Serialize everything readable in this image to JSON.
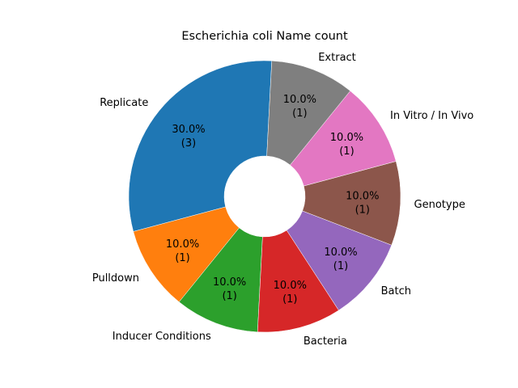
{
  "chart_data": {
    "type": "pie",
    "title": "Escherichia coli Name count",
    "donut": true,
    "start_angle_deg": 87,
    "direction": "counterclockwise",
    "slices": [
      {
        "label": "Replicate",
        "value": 3,
        "pct_text": "30.0%",
        "count_text": "(3)",
        "color": "#1f77b4"
      },
      {
        "label": "Pulldown",
        "value": 1,
        "pct_text": "10.0%",
        "count_text": "(1)",
        "color": "#ff7f0e"
      },
      {
        "label": "Inducer Conditions",
        "value": 1,
        "pct_text": "10.0%",
        "count_text": "(1)",
        "color": "#2ca02c"
      },
      {
        "label": "Bacteria",
        "value": 1,
        "pct_text": "10.0%",
        "count_text": "(1)",
        "color": "#d62728"
      },
      {
        "label": "Batch",
        "value": 1,
        "pct_text": "10.0%",
        "count_text": "(1)",
        "color": "#9467bd"
      },
      {
        "label": "Genotype",
        "value": 1,
        "pct_text": "10.0%",
        "count_text": "(1)",
        "color": "#8c564b"
      },
      {
        "label": "In Vitro / In Vivo",
        "value": 1,
        "pct_text": "10.0%",
        "count_text": "(1)",
        "color": "#e377c2"
      },
      {
        "label": "Extract",
        "value": 1,
        "pct_text": "10.0%",
        "count_text": "(1)",
        "color": "#7f7f7f"
      }
    ]
  }
}
